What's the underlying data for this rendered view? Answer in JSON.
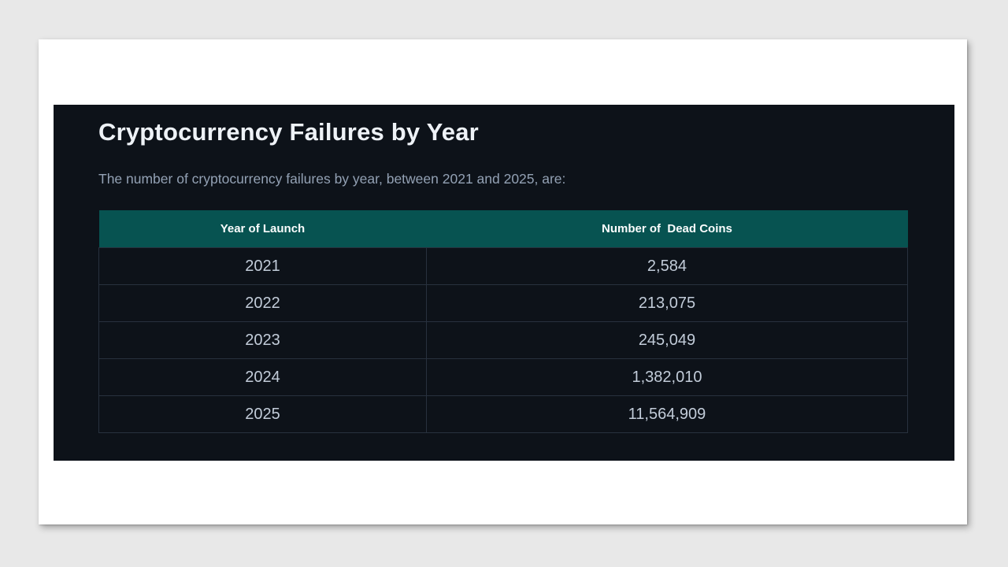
{
  "slide": {
    "title": "Cryptocurrency Failures by Year",
    "subtitle": "The number of cryptocurrency failures by year, between 2021 and 2025, are:"
  },
  "table": {
    "columns": {
      "year": "Year of Launch",
      "dead_coins": "Number of  Dead Coins"
    },
    "rows": [
      {
        "year": "2021",
        "dead_coins": "2,584"
      },
      {
        "year": "2022",
        "dead_coins": "213,075"
      },
      {
        "year": "2023",
        "dead_coins": "245,049"
      },
      {
        "year": "2024",
        "dead_coins": "1,382,010"
      },
      {
        "year": "2025",
        "dead_coins": "11,564,909"
      }
    ]
  },
  "colors": {
    "page_background": "#e8e8e8",
    "card_background": "#ffffff",
    "panel_background": "#0d1219",
    "table_header_background": "#075351",
    "title_text": "#eef2f7",
    "subtitle_text": "#93a1b4",
    "cell_text": "#c2ccd9",
    "cell_border": "#28313e"
  }
}
